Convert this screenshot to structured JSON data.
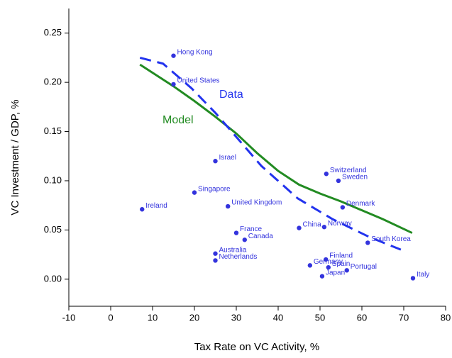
{
  "chart_data": {
    "type": "scatter",
    "x_label": "Tax Rate on VC Activity, %",
    "y_label": "VC Investment / GDP, %",
    "xlim": [
      -10,
      80
    ],
    "xticks": [
      -10,
      0,
      10,
      20,
      30,
      40,
      50,
      60,
      70,
      80
    ],
    "ylim": [
      -0.0275,
      0.275
    ],
    "yticks": [
      {
        "value": 0,
        "label": "0.00"
      },
      {
        "value": 0.05,
        "label": "0.05"
      },
      {
        "value": 0.1,
        "label": "0.10"
      },
      {
        "value": 0.15,
        "label": "0.15"
      },
      {
        "value": 0.2,
        "label": "0.20"
      },
      {
        "value": 0.25,
        "label": "0.25"
      }
    ],
    "points": {
      "color": "#3333dd",
      "labels": [
        "Hong Kong",
        "United States",
        "Israel",
        "Singapore",
        "Ireland",
        "United Kingdom",
        "France",
        "Canada",
        "Australia",
        "Netherlands",
        "China",
        "Norway",
        "Switzerland",
        "Sweden",
        "Denmark",
        "South Korea",
        "Finland",
        "Germany",
        "Spain",
        "Portugal",
        "Japan",
        "Italy"
      ],
      "x": [
        15,
        15,
        25,
        20,
        7.5,
        28,
        30,
        32,
        25,
        25,
        45,
        51,
        51.5,
        54.4,
        55.4,
        61.4,
        51.4,
        47.6,
        52,
        56.4,
        50.5,
        72.2
      ],
      "values": [
        0.227,
        0.198,
        0.12,
        0.088,
        0.071,
        0.074,
        0.047,
        0.04,
        0.026,
        0.019,
        0.052,
        0.053,
        0.107,
        0.1,
        0.073,
        0.037,
        0.02,
        0.014,
        0.012,
        0.009,
        0.003,
        0.001
      ]
    },
    "series": [
      {
        "name": "Model",
        "color": "#228b22",
        "dashed": false,
        "x": [
          7,
          15,
          20,
          25,
          30,
          35,
          40,
          45,
          50,
          55,
          60,
          65,
          72
        ],
        "values": [
          0.218,
          0.196,
          0.181,
          0.165,
          0.148,
          0.128,
          0.11,
          0.096,
          0.087,
          0.079,
          0.07,
          0.061,
          0.047
        ]
      },
      {
        "name": "Data",
        "color": "#2233ee",
        "dashed": true,
        "x": [
          7,
          12.5,
          19.3,
          25,
          29.5,
          36,
          44.7,
          53,
          61.7,
          69.3
        ],
        "values": [
          0.225,
          0.219,
          0.194,
          0.169,
          0.147,
          0.115,
          0.082,
          0.061,
          0.043,
          0.03
        ]
      }
    ]
  }
}
